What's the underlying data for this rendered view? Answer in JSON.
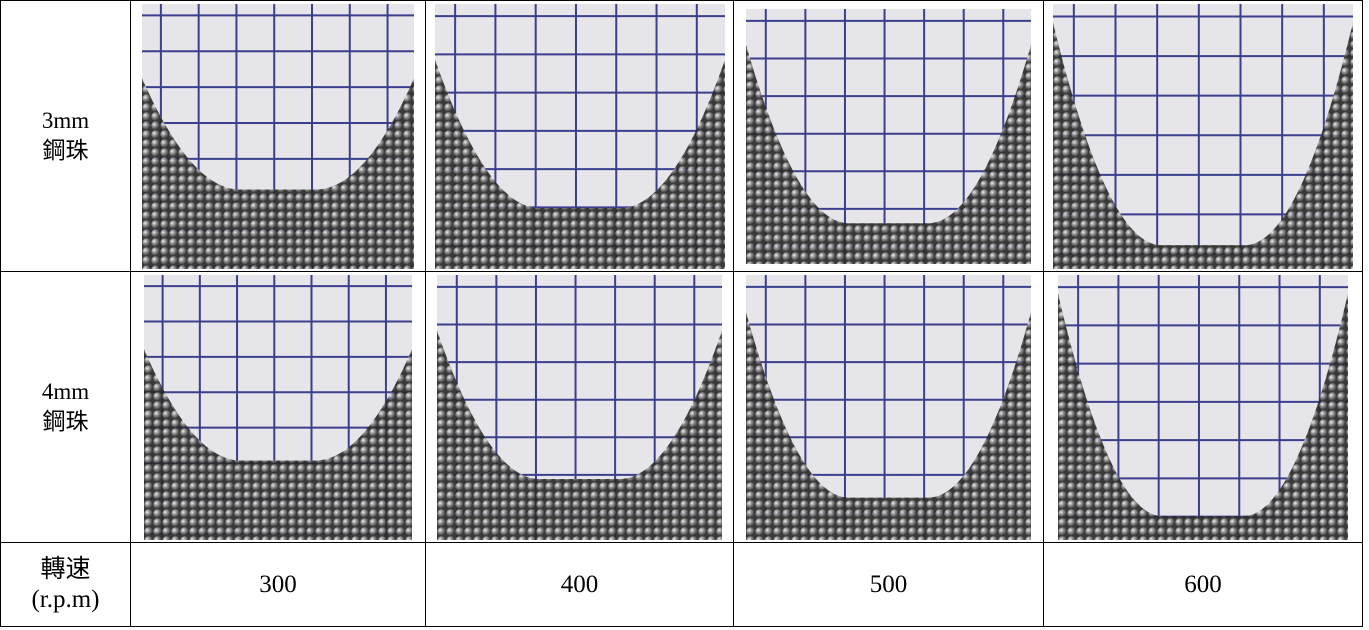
{
  "table": {
    "rows": [
      {
        "header": [
          "3mm",
          "鋼珠"
        ]
      },
      {
        "header": [
          "4mm",
          "鋼珠"
        ]
      },
      {
        "header": [
          "轉速",
          "(r.p.m)"
        ],
        "cells": [
          300,
          400,
          500,
          600
        ]
      }
    ]
  }
}
